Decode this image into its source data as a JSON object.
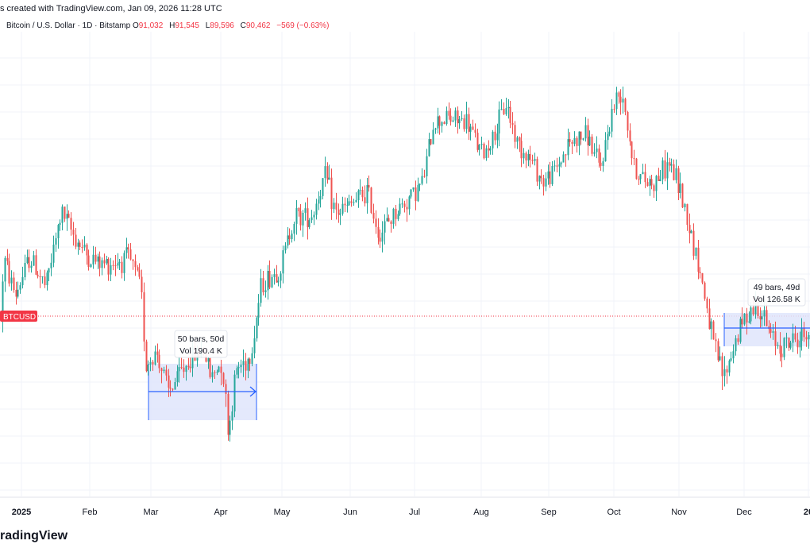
{
  "header": {
    "created_text": "s created with TradingView.com, Jan 09, 2026 11:28 UTC"
  },
  "symbol_line": {
    "title": "Bitcoin / U.S. Dollar · 1D · Bitstamp",
    "open_label": "O",
    "open": "91,032",
    "high_label": "H",
    "high": "91,545",
    "low_label": "L",
    "low": "89,596",
    "close_label": "C",
    "close": "90,462",
    "change": "−569 (−0.63%)"
  },
  "price_tag": {
    "label": "BTCUSD",
    "color": "#f23645"
  },
  "footer": {
    "logo_text": "radingView"
  },
  "measures": [
    {
      "line1": "50 bars, 50d",
      "line2": "Vol 190.4 K"
    },
    {
      "line1": "49 bars, 49d",
      "line2": "Vol 126.58 K"
    }
  ],
  "colors": {
    "up": "#26a69a",
    "down": "#ef5350",
    "grid": "#f0f3fa",
    "measure_fill": "#dfe5fb",
    "measure_line": "#2962ff"
  },
  "chart_data": {
    "type": "candlestick",
    "title": "Bitcoin / U.S. Dollar · 1D · Bitstamp",
    "timeframe": "1D",
    "x_ticks": [
      "2025",
      "Feb",
      "Mar",
      "Apr",
      "May",
      "Jun",
      "Jul",
      "Aug",
      "Sep",
      "Oct",
      "Nov",
      "Dec",
      "20"
    ],
    "y_scale": "log",
    "ylim": [
      72000,
      128000
    ],
    "grid": true,
    "last_close": 90462,
    "series": [
      {
        "period": "2025-01",
        "open": 93500,
        "high": 106000,
        "low": 89300,
        "close": 102400
      },
      {
        "period": "2025-02",
        "open": 102400,
        "high": 102700,
        "low": 78200,
        "close": 84300
      },
      {
        "period": "2025-03",
        "open": 84300,
        "high": 95000,
        "low": 76600,
        "close": 82500
      },
      {
        "period": "2025-04",
        "open": 82500,
        "high": 95800,
        "low": 74400,
        "close": 94200
      },
      {
        "period": "2025-05",
        "open": 94200,
        "high": 111900,
        "low": 93400,
        "close": 104600
      },
      {
        "period": "2025-06",
        "open": 104600,
        "high": 110500,
        "low": 98200,
        "close": 107100
      },
      {
        "period": "2025-07",
        "open": 107100,
        "high": 123200,
        "low": 105200,
        "close": 115700
      },
      {
        "period": "2025-08",
        "open": 115700,
        "high": 124500,
        "low": 107500,
        "close": 108200
      },
      {
        "period": "2025-09",
        "open": 108200,
        "high": 117900,
        "low": 107300,
        "close": 114000
      },
      {
        "period": "2025-10",
        "open": 114000,
        "high": 126200,
        "low": 103500,
        "close": 109600
      },
      {
        "period": "2025-11",
        "open": 109600,
        "high": 111000,
        "low": 80600,
        "close": 90400
      },
      {
        "period": "2025-12",
        "open": 90400,
        "high": 94600,
        "low": 84400,
        "close": 87600
      },
      {
        "period": "2026-01",
        "open": 87600,
        "high": 94800,
        "low": 87200,
        "close": 90462
      }
    ]
  }
}
